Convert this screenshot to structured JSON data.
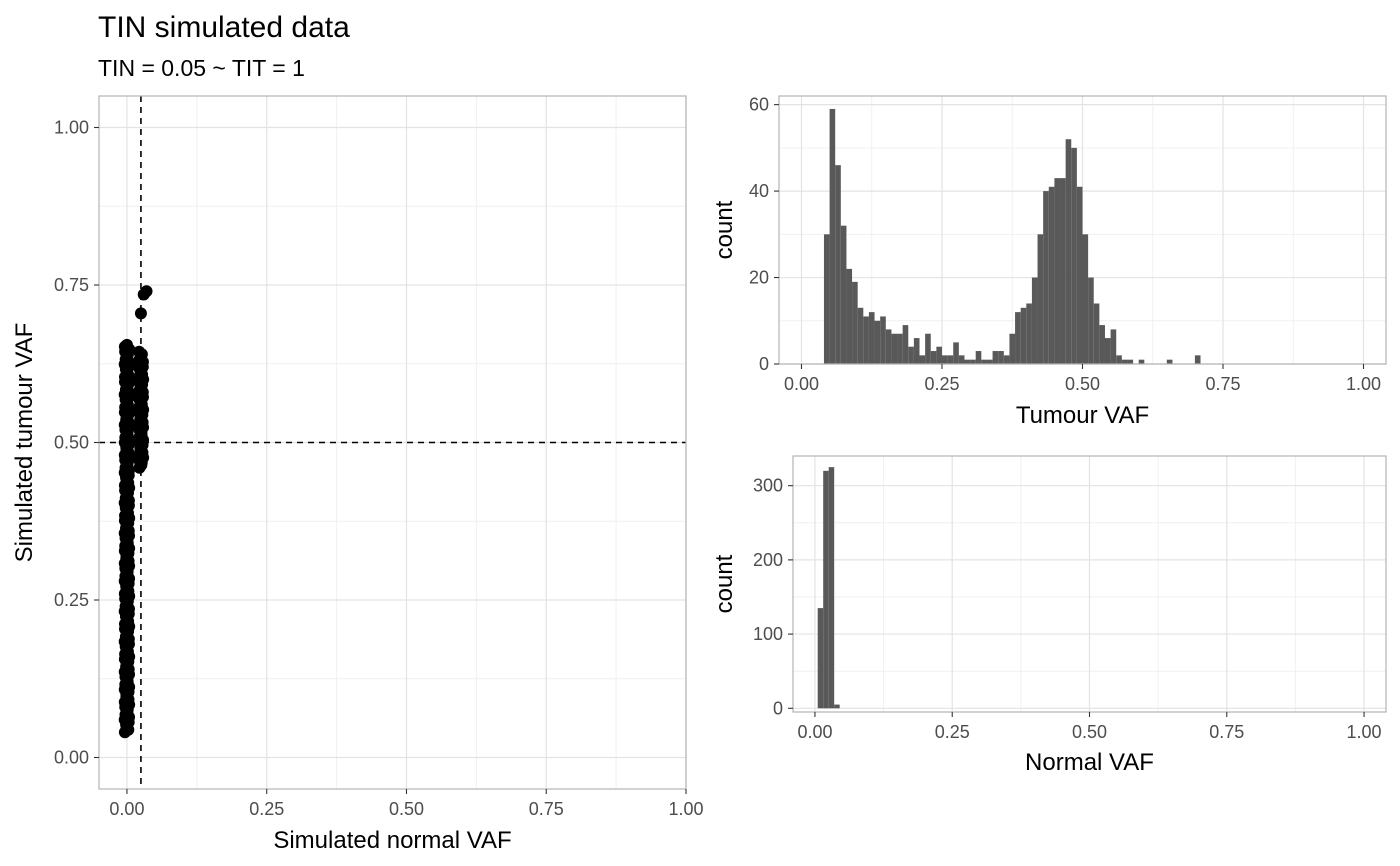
{
  "title": "TIN simulated data",
  "subtitle": "TIN = 0.05 ~ TIT = 1",
  "chart_data": [
    {
      "type": "scatter",
      "xlabel": "Simulated normal VAF",
      "ylabel": "Simulated tumour VAF",
      "xlim": [
        -0.05,
        1.0
      ],
      "ylim": [
        -0.05,
        1.05
      ],
      "xticks": [
        "0.00",
        "0.25",
        "0.50",
        "0.75",
        "1.00"
      ],
      "yticks": [
        "0.00",
        "0.25",
        "0.50",
        "0.75",
        "1.00"
      ],
      "grid": true,
      "point_color": "#000000",
      "reference_lines": [
        {
          "orientation": "vertical",
          "value": 0.025,
          "style": "dashed"
        },
        {
          "orientation": "horizontal",
          "value": 0.5,
          "style": "dashed"
        }
      ],
      "clusters": [
        {
          "x": 0.0,
          "y_min": 0.04,
          "y_max": 0.655
        },
        {
          "x": 0.025,
          "y_min": 0.46,
          "y_max": 0.645
        }
      ],
      "points": [
        {
          "x": 0.0,
          "y": 0.655
        },
        {
          "x": 0.025,
          "y": 0.705
        },
        {
          "x": 0.03,
          "y": 0.735
        },
        {
          "x": 0.035,
          "y": 0.74
        }
      ]
    },
    {
      "type": "bar",
      "xlabel": "Tumour VAF",
      "ylabel": "count",
      "xlim": [
        -0.04,
        1.04
      ],
      "ylim": [
        0,
        62
      ],
      "xticks": [
        "0.00",
        "0.25",
        "0.50",
        "0.75",
        "1.00"
      ],
      "yticks": [
        "0",
        "20",
        "40",
        "60"
      ],
      "bar_color": "#595959",
      "bin_start": 0.04,
      "bin_width": 0.01,
      "values": [
        30,
        59,
        46,
        32,
        22,
        19,
        13,
        11,
        12,
        10,
        11,
        8,
        7,
        7,
        9,
        4,
        6,
        2,
        7,
        3,
        4,
        2,
        2,
        5,
        2,
        1,
        1,
        3,
        1,
        1,
        3,
        3,
        2,
        7,
        12,
        13,
        14,
        20,
        30,
        40,
        41,
        43,
        43,
        52,
        50,
        41,
        30,
        20,
        14,
        9,
        6,
        8,
        2,
        1,
        1,
        0,
        1,
        0,
        0,
        0,
        0,
        1,
        0,
        0,
        0,
        0,
        2
      ]
    },
    {
      "type": "bar",
      "xlabel": "Normal VAF",
      "ylabel": "count",
      "xlim": [
        -0.04,
        1.04
      ],
      "ylim": [
        -5,
        340
      ],
      "xticks": [
        "0.00",
        "0.25",
        "0.50",
        "0.75",
        "1.00"
      ],
      "yticks": [
        "0",
        "100",
        "200",
        "300"
      ],
      "bar_color": "#595959",
      "bin_start": 0.005,
      "bin_width": 0.01,
      "values": [
        135,
        320,
        325,
        5
      ]
    }
  ]
}
